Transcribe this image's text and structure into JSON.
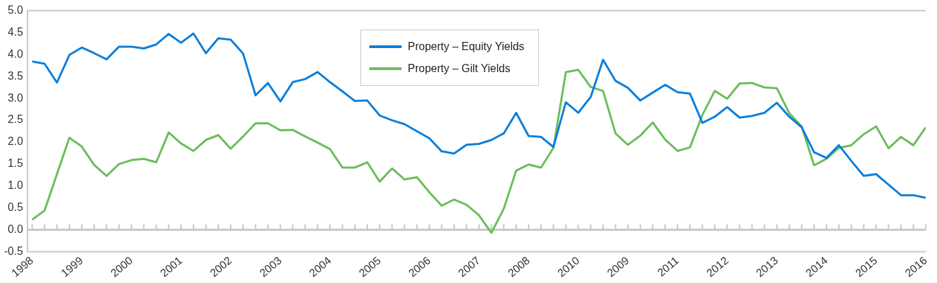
{
  "chart_data": {
    "type": "line",
    "categories": [
      "1998",
      null,
      null,
      null,
      "1999",
      null,
      null,
      null,
      "2000",
      null,
      null,
      null,
      "2001",
      null,
      null,
      null,
      "2002",
      null,
      null,
      null,
      "2003",
      null,
      null,
      null,
      "2004",
      null,
      null,
      null,
      "2005",
      null,
      null,
      null,
      "2006",
      null,
      null,
      null,
      "2007",
      null,
      null,
      null,
      "2008",
      null,
      null,
      null,
      "2010",
      null,
      null,
      null,
      "2009",
      null,
      null,
      null,
      "2011",
      null,
      null,
      null,
      "2012",
      null,
      null,
      null,
      "2013",
      null,
      null,
      null,
      "2014",
      null,
      null,
      null,
      "2015",
      null,
      null,
      null,
      "2016"
    ],
    "series": [
      {
        "name": "Property – Equity Yields",
        "color": "#0a7fdc",
        "values": [
          3.84,
          3.79,
          3.36,
          3.99,
          4.16,
          4.03,
          3.89,
          4.18,
          4.18,
          4.14,
          4.23,
          4.47,
          4.27,
          4.48,
          4.03,
          4.37,
          4.34,
          4.02,
          3.07,
          3.35,
          2.93,
          3.37,
          3.44,
          3.6,
          3.37,
          3.16,
          2.94,
          2.95,
          2.61,
          2.5,
          2.41,
          2.25,
          2.09,
          1.79,
          1.74,
          1.94,
          1.96,
          2.05,
          2.2,
          2.67,
          2.14,
          2.12,
          1.89,
          2.91,
          2.67,
          3.03,
          3.88,
          3.4,
          3.24,
          2.95,
          3.13,
          3.31,
          3.14,
          3.11,
          2.44,
          2.58,
          2.8,
          2.56,
          2.6,
          2.67,
          2.9,
          2.58,
          2.34,
          1.77,
          1.64,
          1.93,
          1.57,
          1.23,
          1.27,
          1.03,
          0.79,
          0.79,
          0.73
        ]
      },
      {
        "name": "Property – Gilt Yields",
        "color": "#6abd5a",
        "values": [
          0.23,
          0.44,
          1.27,
          2.1,
          1.9,
          1.48,
          1.23,
          1.5,
          1.59,
          1.62,
          1.54,
          2.22,
          1.97,
          1.8,
          2.05,
          2.16,
          1.85,
          2.13,
          2.43,
          2.43,
          2.27,
          2.28,
          2.13,
          1.99,
          1.84,
          1.42,
          1.42,
          1.54,
          1.1,
          1.4,
          1.15,
          1.2,
          0.86,
          0.55,
          0.69,
          0.57,
          0.33,
          -0.07,
          0.48,
          1.35,
          1.49,
          1.42,
          1.87,
          3.6,
          3.65,
          3.26,
          3.17,
          2.2,
          1.94,
          2.15,
          2.45,
          2.06,
          1.8,
          1.88,
          2.62,
          3.17,
          2.99,
          3.34,
          3.35,
          3.25,
          3.23,
          2.66,
          2.36,
          1.47,
          1.62,
          1.87,
          1.93,
          2.18,
          2.36,
          1.86,
          2.12,
          1.93,
          2.34
        ]
      }
    ],
    "ylim": [
      -0.5,
      5.0
    ],
    "yticks": [
      {
        "value": -0.5,
        "label": "-0.5"
      },
      {
        "value": 0,
        "label": "0.0"
      },
      {
        "value": 0.5,
        "label": "0.5"
      },
      {
        "value": 1,
        "label": "1.0"
      },
      {
        "value": 1.5,
        "label": "1.5"
      },
      {
        "value": 2,
        "label": "2.0"
      },
      {
        "value": 2.5,
        "label": "2.5"
      },
      {
        "value": 3,
        "label": "3.0"
      },
      {
        "value": 3.5,
        "label": "3.5"
      },
      {
        "value": 4,
        "label": "4.0"
      },
      {
        "value": 4.5,
        "label": "4.5"
      },
      {
        "value": 5,
        "label": "5.0"
      }
    ],
    "ref_lines": [
      {
        "axis": "y",
        "value": 0,
        "color": "#c8c8c8"
      }
    ],
    "grid": false,
    "legend": "top",
    "marker": "none",
    "line_style": "solid"
  }
}
